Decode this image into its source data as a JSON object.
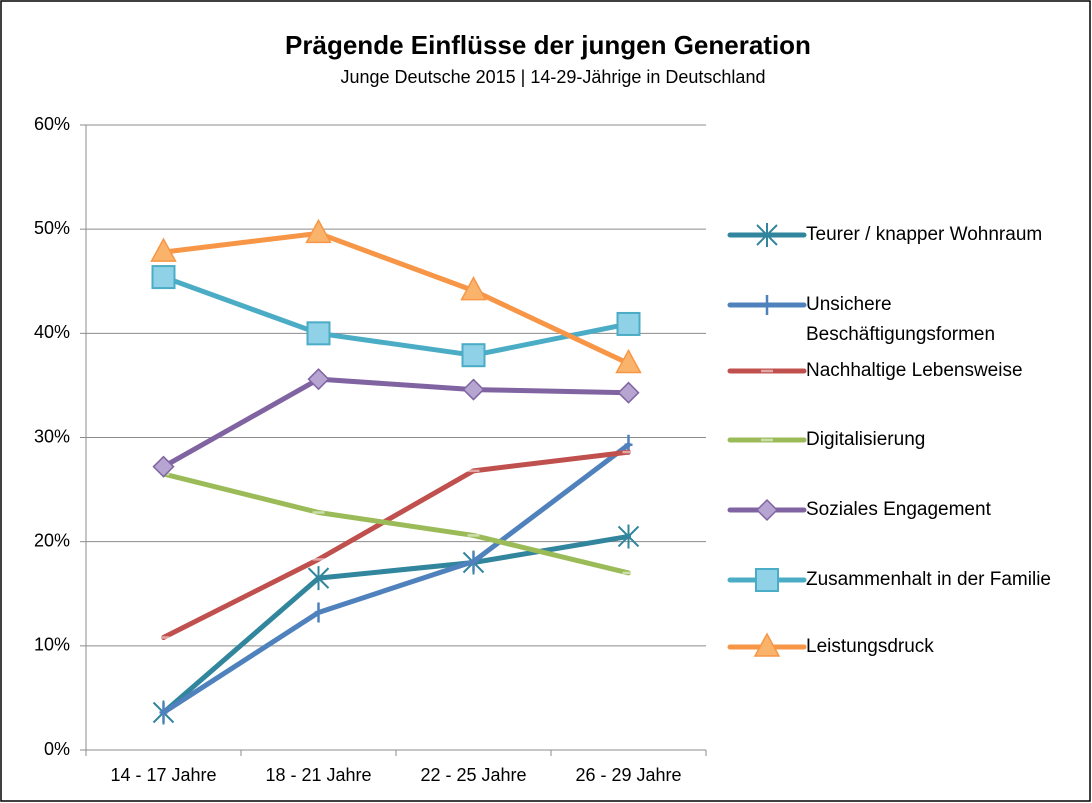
{
  "chart_data": {
    "type": "line",
    "title": "Prägende Einflüsse der jungen Generation",
    "subtitle": "Junge Deutsche 2015 | 14-29-Jährige in Deutschland",
    "categories": [
      "14 - 17 Jahre",
      "18 - 21 Jahre",
      "22 - 25 Jahre",
      "26 - 29 Jahre"
    ],
    "series": [
      {
        "name": "Teurer / knapper Wohnraum",
        "color": "#31859c",
        "marker": "asterisk",
        "values": [
          3.6,
          16.5,
          18.0,
          20.5
        ]
      },
      {
        "name": "Unsichere Beschäftigungsformen",
        "color": "#4f81bd",
        "marker": "plus",
        "values": [
          3.6,
          13.2,
          18.1,
          29.3
        ]
      },
      {
        "name": "Nachhaltige Lebensweise",
        "color": "#c0504d",
        "marker": "dash",
        "values": [
          10.8,
          18.3,
          26.8,
          28.6
        ]
      },
      {
        "name": "Digitalisierung",
        "color": "#9bbb59",
        "marker": "dash",
        "values": [
          26.5,
          22.8,
          20.6,
          17.0
        ]
      },
      {
        "name": "Soziales Engagement",
        "color": "#8064a2",
        "marker": "diamond",
        "values": [
          27.2,
          35.6,
          34.6,
          34.3
        ]
      },
      {
        "name": "Zusammenhalt in der Familie",
        "color": "#4bacc6",
        "marker": "square",
        "values": [
          45.4,
          40.0,
          37.9,
          40.9
        ]
      },
      {
        "name": "Leistungsdruck",
        "color": "#f79646",
        "marker": "triangle",
        "values": [
          47.8,
          49.6,
          44.1,
          37.1
        ]
      }
    ],
    "ylim": [
      0,
      60
    ],
    "yticks": [
      {
        "value": 0,
        "label": "0%"
      },
      {
        "value": 10,
        "label": "10%"
      },
      {
        "value": 20,
        "label": "20%"
      },
      {
        "value": 30,
        "label": "30%"
      },
      {
        "value": 40,
        "label": "40%"
      },
      {
        "value": 50,
        "label": "50%"
      },
      {
        "value": 60,
        "label": "60%"
      }
    ],
    "grid": true,
    "legend": "right"
  }
}
